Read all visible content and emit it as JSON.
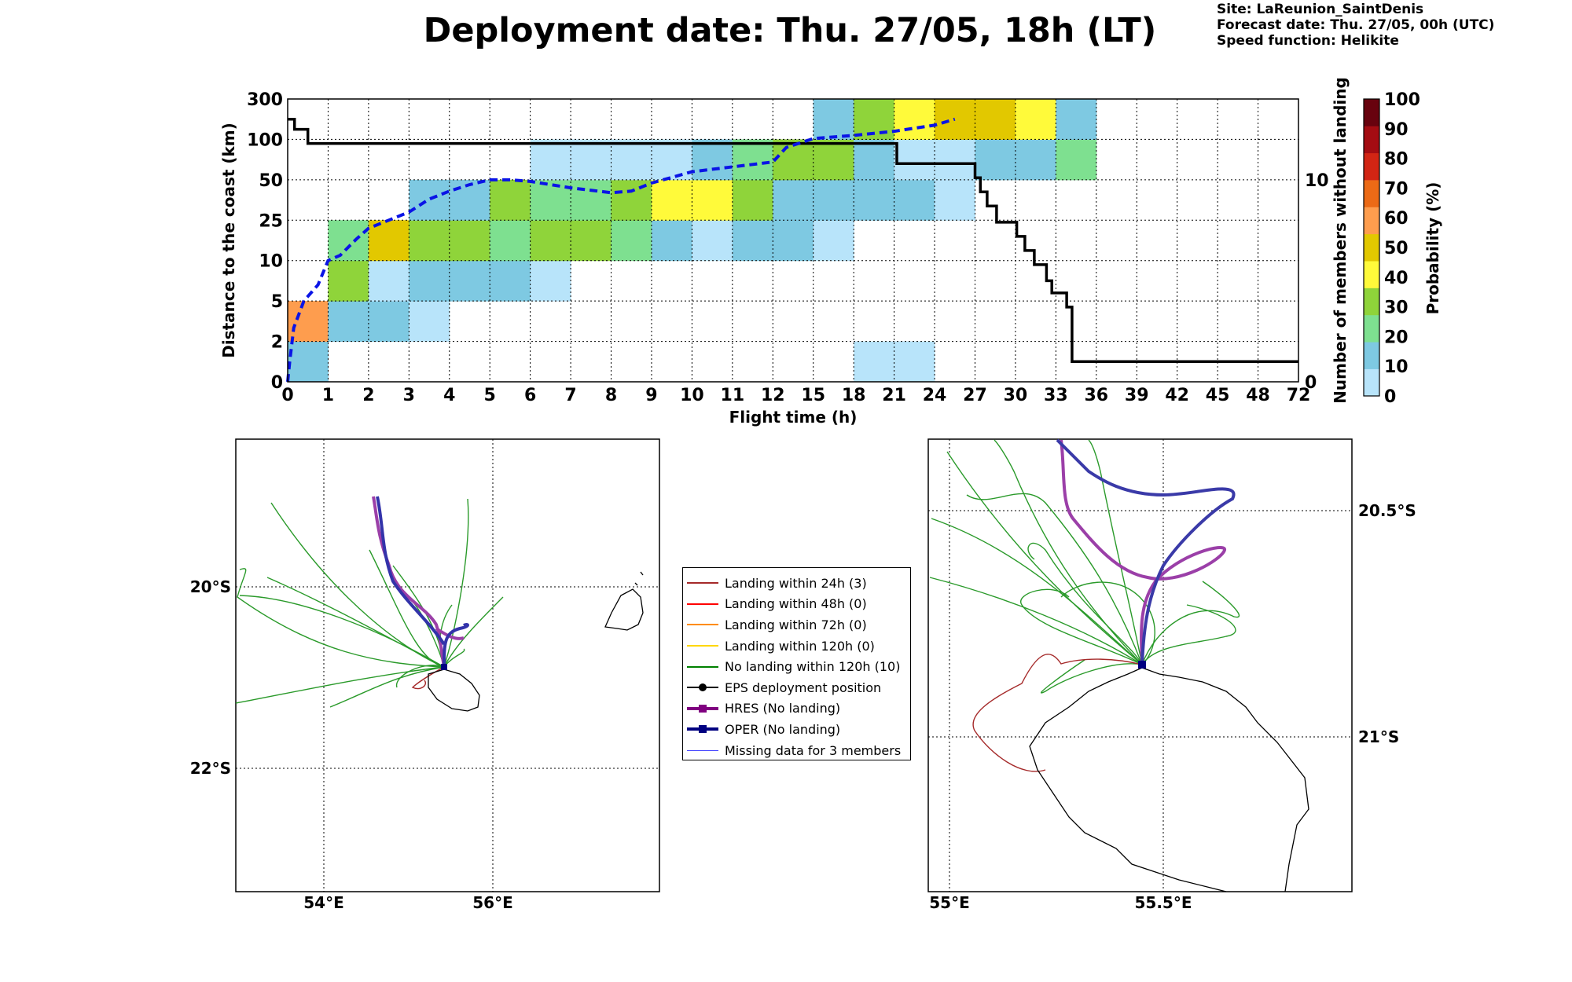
{
  "title": "Deployment date: Thu. 27/05, 18h (LT)",
  "site_info": [
    "Site: LaReunion_SaintDenis",
    "Forecast date: Thu. 27/05, 00h (UTC)",
    "Speed function: Helikite"
  ],
  "chart_data": [
    {
      "type": "heatmap",
      "xlabel": "Flight time (h)",
      "ylabel": "Distance to the coast (km)",
      "y2label": "Number of members without landing",
      "colorbar_label": "Probability (%)",
      "x_ticks": [
        "0",
        "1",
        "2",
        "3",
        "4",
        "5",
        "6",
        "7",
        "8",
        "9",
        "10",
        "11",
        "12",
        "15",
        "18",
        "21",
        "24",
        "27",
        "30",
        "33",
        "36",
        "39",
        "42",
        "45",
        "48",
        "72"
      ],
      "y_ticks": [
        "0",
        "2",
        "5",
        "10",
        "25",
        "50",
        "100",
        "300"
      ],
      "y2_ticks": [
        "0",
        "10"
      ],
      "y2_range": [
        0,
        14
      ],
      "colorbar_ticks": [
        "0",
        "10",
        "20",
        "30",
        "40",
        "50",
        "60",
        "70",
        "80",
        "90",
        "100"
      ],
      "colorbar_colors": [
        "#b8e4fa",
        "#7ec9e2",
        "#7ee090",
        "#8fd43a",
        "#fffa3a",
        "#e2c800",
        "#fe9d4e",
        "#ec6a16",
        "#d22514",
        "#a40c12",
        "#68020e"
      ],
      "grid": true,
      "cells": [
        {
          "x": 0,
          "y": 0,
          "p": 10
        },
        {
          "x": 0,
          "y": 1,
          "p": 60
        },
        {
          "x": 1,
          "y": 1,
          "p": 10
        },
        {
          "x": 2,
          "y": 1,
          "p": 10
        },
        {
          "x": 3,
          "y": 1,
          "p": 0
        },
        {
          "x": 1,
          "y": 2,
          "p": 30
        },
        {
          "x": 2,
          "y": 2,
          "p": 0
        },
        {
          "x": 3,
          "y": 2,
          "p": 10
        },
        {
          "x": 4,
          "y": 2,
          "p": 10
        },
        {
          "x": 5,
          "y": 2,
          "p": 10
        },
        {
          "x": 6,
          "y": 2,
          "p": 0
        },
        {
          "x": 1,
          "y": 3,
          "p": 20
        },
        {
          "x": 2,
          "y": 3,
          "p": 50
        },
        {
          "x": 3,
          "y": 3,
          "p": 30
        },
        {
          "x": 4,
          "y": 3,
          "p": 30
        },
        {
          "x": 5,
          "y": 3,
          "p": 20
        },
        {
          "x": 6,
          "y": 3,
          "p": 30
        },
        {
          "x": 7,
          "y": 3,
          "p": 30
        },
        {
          "x": 8,
          "y": 3,
          "p": 20
        },
        {
          "x": 9,
          "y": 3,
          "p": 10
        },
        {
          "x": 10,
          "y": 3,
          "p": 0
        },
        {
          "x": 11,
          "y": 3,
          "p": 10
        },
        {
          "x": 12,
          "y": 3,
          "p": 10
        },
        {
          "x": 13,
          "y": 3,
          "p": 0
        },
        {
          "x": 3,
          "y": 4,
          "p": 10
        },
        {
          "x": 4,
          "y": 4,
          "p": 10
        },
        {
          "x": 5,
          "y": 4,
          "p": 30
        },
        {
          "x": 6,
          "y": 4,
          "p": 20
        },
        {
          "x": 7,
          "y": 4,
          "p": 20
        },
        {
          "x": 8,
          "y": 4,
          "p": 30
        },
        {
          "x": 9,
          "y": 4,
          "p": 40
        },
        {
          "x": 10,
          "y": 4,
          "p": 40
        },
        {
          "x": 11,
          "y": 4,
          "p": 30
        },
        {
          "x": 12,
          "y": 4,
          "p": 10
        },
        {
          "x": 13,
          "y": 4,
          "p": 10
        },
        {
          "x": 14,
          "y": 4,
          "p": 10
        },
        {
          "x": 15,
          "y": 4,
          "p": 10
        },
        {
          "x": 16,
          "y": 4,
          "p": 0
        },
        {
          "x": 6,
          "y": 5,
          "p": 0
        },
        {
          "x": 7,
          "y": 5,
          "p": 0
        },
        {
          "x": 8,
          "y": 5,
          "p": 0
        },
        {
          "x": 9,
          "y": 5,
          "p": 0
        },
        {
          "x": 10,
          "y": 5,
          "p": 10
        },
        {
          "x": 11,
          "y": 5,
          "p": 20
        },
        {
          "x": 12,
          "y": 5,
          "p": 30
        },
        {
          "x": 13,
          "y": 5,
          "p": 30
        },
        {
          "x": 14,
          "y": 5,
          "p": 10
        },
        {
          "x": 15,
          "y": 5,
          "p": 0
        },
        {
          "x": 16,
          "y": 5,
          "p": 0
        },
        {
          "x": 17,
          "y": 5,
          "p": 10
        },
        {
          "x": 18,
          "y": 5,
          "p": 10
        },
        {
          "x": 19,
          "y": 5,
          "p": 20
        },
        {
          "x": 13,
          "y": 6,
          "p": 10
        },
        {
          "x": 14,
          "y": 6,
          "p": 30
        },
        {
          "x": 15,
          "y": 6,
          "p": 40
        },
        {
          "x": 16,
          "y": 6,
          "p": 50
        },
        {
          "x": 17,
          "y": 6,
          "p": 50
        },
        {
          "x": 18,
          "y": 6,
          "p": 40
        },
        {
          "x": 19,
          "y": 6,
          "p": 10
        },
        {
          "x": 14,
          "y": 0,
          "p": 0
        },
        {
          "x": 15,
          "y": 0,
          "p": 0
        }
      ],
      "members_without_landing": [
        [
          0,
          13
        ],
        [
          0.17,
          13
        ],
        [
          0.17,
          12.5
        ],
        [
          0.5,
          12.5
        ],
        [
          0.5,
          11.8
        ],
        [
          21.2,
          11.8
        ],
        [
          21.2,
          10.8
        ],
        [
          27,
          10.8
        ],
        [
          27,
          10.1
        ],
        [
          27.4,
          10.1
        ],
        [
          27.4,
          9.4
        ],
        [
          27.9,
          9.4
        ],
        [
          27.9,
          8.7
        ],
        [
          28.6,
          8.7
        ],
        [
          28.6,
          7.9
        ],
        [
          30.1,
          7.9
        ],
        [
          30.1,
          7.2
        ],
        [
          30.7,
          7.2
        ],
        [
          30.7,
          6.5
        ],
        [
          31.4,
          6.5
        ],
        [
          31.4,
          5.8
        ],
        [
          32.3,
          5.8
        ],
        [
          32.3,
          5.0
        ],
        [
          32.7,
          5.0
        ],
        [
          32.7,
          4.4
        ],
        [
          33.8,
          4.4
        ],
        [
          33.8,
          3.7
        ],
        [
          34.2,
          3.7
        ],
        [
          34.2,
          1.0
        ],
        [
          72,
          1.0
        ]
      ],
      "median_distance_km": [
        [
          0,
          0
        ],
        [
          0.05,
          1
        ],
        [
          0.15,
          3
        ],
        [
          0.4,
          5
        ],
        [
          0.75,
          7
        ],
        [
          1,
          10
        ],
        [
          1.3,
          12
        ],
        [
          1.7,
          18
        ],
        [
          2,
          22
        ],
        [
          2.5,
          25
        ],
        [
          3,
          30
        ],
        [
          3.5,
          38
        ],
        [
          4,
          43
        ],
        [
          4.5,
          47
        ],
        [
          5,
          50
        ],
        [
          5.5,
          50
        ],
        [
          6,
          49
        ],
        [
          7,
          45
        ],
        [
          8,
          42
        ],
        [
          8.5,
          43
        ],
        [
          9,
          48
        ],
        [
          10,
          60
        ],
        [
          11,
          66
        ],
        [
          12,
          72
        ],
        [
          13,
          90
        ],
        [
          15,
          104
        ],
        [
          18,
          120
        ],
        [
          21,
          140
        ],
        [
          24,
          170
        ],
        [
          25.5,
          200
        ]
      ]
    },
    {
      "type": "map",
      "lon_ticks": [
        "54°E",
        "56°E"
      ],
      "lat_ticks": [
        "20°S",
        "22°S"
      ]
    },
    {
      "type": "map",
      "lon_ticks": [
        "55°E",
        "55.5°E"
      ],
      "lat_ticks": [
        "20.5°S",
        "21°S"
      ]
    }
  ],
  "legend": [
    {
      "label": "Landing within 24h (3)",
      "color": "#a52a2a",
      "marker": "none",
      "width": 2
    },
    {
      "label": "Landing within 48h (0)",
      "color": "#ff0000",
      "marker": "none",
      "width": 2
    },
    {
      "label": "Landing within 72h (0)",
      "color": "#ff8c00",
      "marker": "none",
      "width": 2
    },
    {
      "label": "Landing within 120h (0)",
      "color": "#ffd700",
      "marker": "none",
      "width": 2
    },
    {
      "label": "No landing within 120h (10)",
      "color": "#008000",
      "marker": "none",
      "width": 2
    },
    {
      "label": "EPS deployment position",
      "color": "#000000",
      "marker": "circle",
      "width": 2
    },
    {
      "label": "HRES (No landing)",
      "color": "#800080",
      "marker": "square",
      "width": 4
    },
    {
      "label": "OPER (No landing)",
      "color": "#000080",
      "marker": "square",
      "width": 4
    },
    {
      "label": "Missing data for 3 members",
      "color": "#4040ff",
      "marker": "none",
      "width": 1
    }
  ]
}
